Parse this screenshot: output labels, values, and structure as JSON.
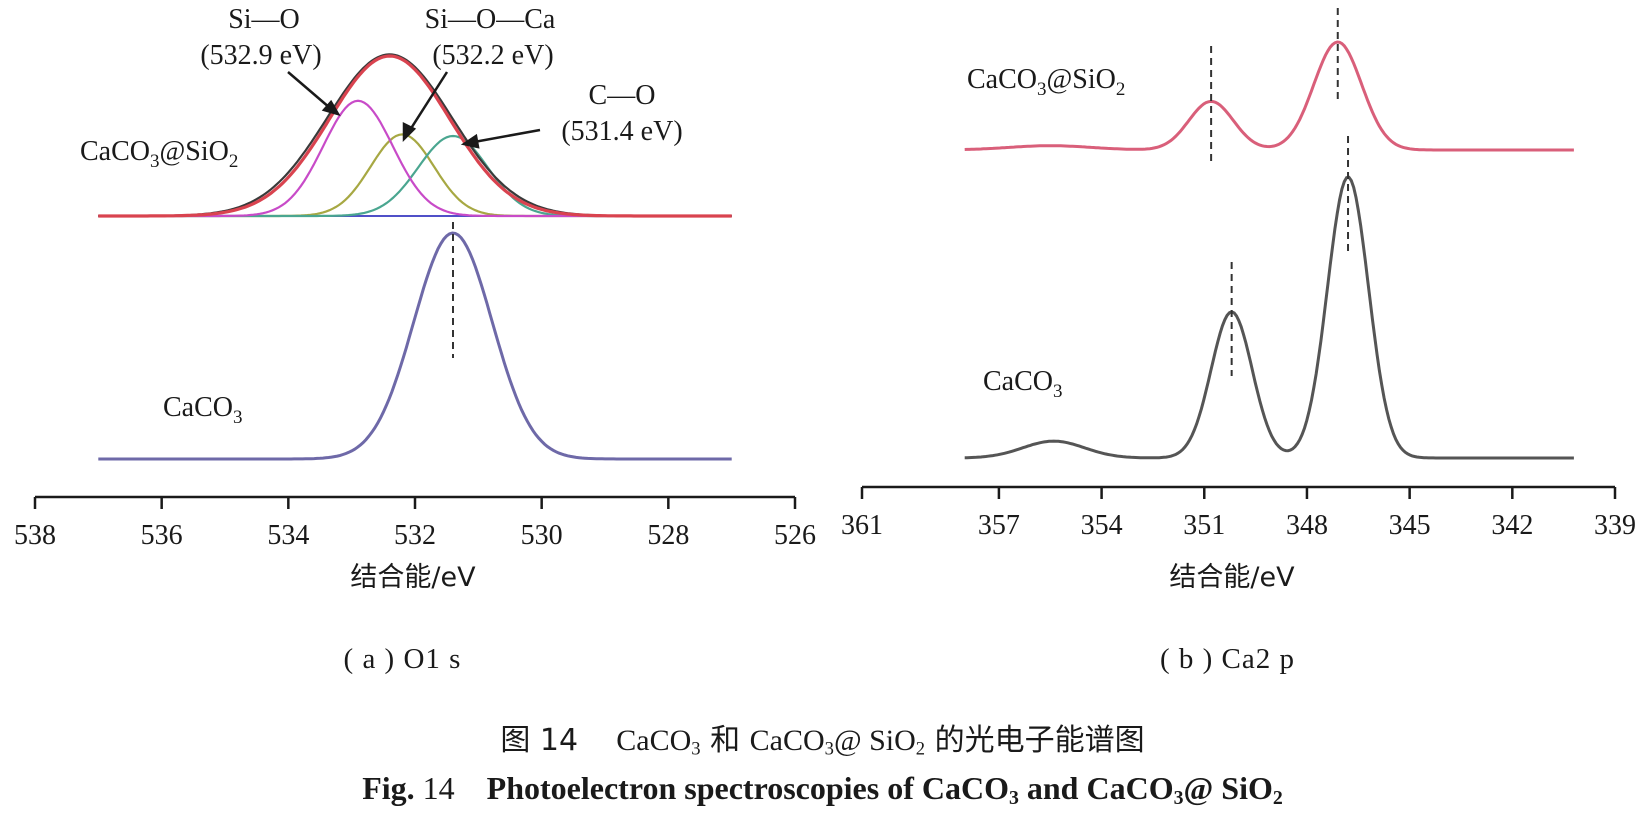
{
  "colors": {
    "o1s_caco3_curve": "#6e69a8",
    "o1s_envelope_black": "#3a3a3a",
    "o1s_envelope_red": "#d9434f",
    "o1s_si_o": "#c84bc8",
    "o1s_si_o_ca": "#a7a843",
    "o1s_c_o": "#4aa690",
    "o1s_baseline": "#5050c8",
    "ca2p_caco3_sio2": "#d95f7a",
    "ca2p_caco3": "#555555"
  },
  "chart_data": [
    {
      "type": "line",
      "panel_label": "(a)O1s",
      "xlabel": "结合能/eV",
      "ylabel": "",
      "x_reversed": true,
      "xlim": [
        538,
        526
      ],
      "x_ticks": [
        538,
        536,
        534,
        532,
        530,
        528,
        526
      ],
      "curve_labels": {
        "caco3_sio2": [
          "CaCO",
          "3",
          "@SiO",
          "2"
        ],
        "caco3": [
          "CaCO",
          "3"
        ]
      },
      "annotations": [
        {
          "name": "Si—O",
          "energy_text": "(532.9 eV)",
          "peak_eV": 532.9
        },
        {
          "name": "Si—O—Ca",
          "energy_text": "(532.2 eV)",
          "peak_eV": 532.2
        },
        {
          "name": "C—O",
          "energy_text": "(531.4 eV)",
          "peak_eV": 531.4
        }
      ],
      "dashed_marker_eV": 531.4,
      "series": [
        {
          "key": "caco3_sio2_envelope",
          "peaks": [
            {
              "center": 532.4,
              "height": 1.0,
              "width": 0.95
            }
          ]
        },
        {
          "key": "si_o_component",
          "peaks": [
            {
              "center": 532.9,
              "height": 0.72,
              "width": 0.55
            }
          ]
        },
        {
          "key": "si_o_ca_component",
          "peaks": [
            {
              "center": 532.2,
              "height": 0.51,
              "width": 0.5
            }
          ]
        },
        {
          "key": "c_o_component",
          "peaks": [
            {
              "center": 531.4,
              "height": 0.5,
              "width": 0.55
            }
          ]
        },
        {
          "key": "caco3_o1s",
          "peaks": [
            {
              "center": 531.4,
              "height": 1.0,
              "width": 0.62
            }
          ]
        }
      ]
    },
    {
      "type": "line",
      "panel_label": "(b)Ca2p",
      "xlabel": "结合能/eV",
      "ylabel": "",
      "x_reversed": true,
      "xlim": [
        361,
        339
      ],
      "x_ticks": [
        361,
        357,
        354,
        351,
        348,
        345,
        342,
        339
      ],
      "curve_labels": {
        "caco3_sio2": [
          "CaCO",
          "3",
          "@SiO",
          "2"
        ],
        "caco3": [
          "CaCO",
          "3"
        ]
      },
      "dashed_markers_eV": {
        "caco3_sio2": [
          350.8,
          347.1
        ],
        "caco3": [
          350.2,
          346.8
        ]
      },
      "series": [
        {
          "key": "caco3_sio2_ca2p",
          "peaks": [
            {
              "center": 350.8,
              "height": 0.45,
              "width": 0.65
            },
            {
              "center": 347.1,
              "height": 1.0,
              "width": 0.7
            },
            {
              "center": 355.5,
              "height": 0.04,
              "width": 1.2
            }
          ]
        },
        {
          "key": "caco3_ca2p",
          "peaks": [
            {
              "center": 350.2,
              "height": 0.52,
              "width": 0.6
            },
            {
              "center": 346.8,
              "height": 1.0,
              "width": 0.6
            },
            {
              "center": 355.4,
              "height": 0.06,
              "width": 0.9
            }
          ]
        }
      ]
    }
  ],
  "captions": {
    "a": "( a ) O1 s",
    "b": "( b ) Ca2 p",
    "cn_prefix": "图 14",
    "cn_caco3": "CaCO",
    "cn_and": "和",
    "cn_caco3_2": "CaCO",
    "cn_at_sio": "@ SiO",
    "cn_tail": "的光电子能谱图",
    "en_prefix": "Fig.",
    "en_num": "14",
    "en_text": "Photoelectron spectroscopies of CaCO",
    "en_and": "and CaCO",
    "en_at_sio": "@ SiO",
    "sub3": "3",
    "sub2": "2"
  }
}
